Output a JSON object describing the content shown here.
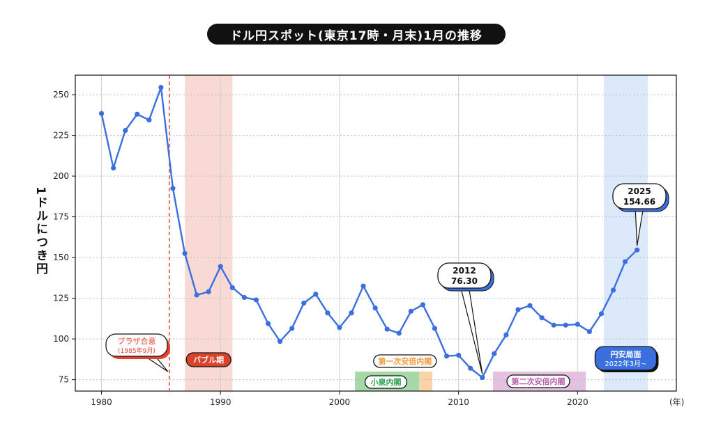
{
  "chart_data": {
    "type": "line",
    "title": "ドル円スポット(東京17時・月末)1月の推移",
    "ylabel": "1ドルにつき円",
    "xunit": "(年)",
    "xlim": [
      1977.8,
      1978.0
    ],
    "ylim": [
      68,
      262
    ],
    "xticks": [
      1980,
      1990,
      2000,
      2010,
      2020
    ],
    "yticks": [
      75,
      100,
      125,
      150,
      175,
      200,
      225,
      250
    ],
    "x": [
      1980,
      1981,
      1982,
      1983,
      1984,
      1985,
      1986,
      1987,
      1988,
      1989,
      1990,
      1991,
      1992,
      1993,
      1994,
      1995,
      1996,
      1997,
      1998,
      1999,
      2000,
      2001,
      2002,
      2003,
      2004,
      2005,
      2006,
      2007,
      2008,
      2009,
      2010,
      2011,
      2012,
      2013,
      2014,
      2015,
      2016,
      2017,
      2018,
      2019,
      2020,
      2021,
      2022,
      2023,
      2024,
      2025
    ],
    "series": [
      {
        "values": [
          238.5,
          205.0,
          228.0,
          238.0,
          234.5,
          254.5,
          192.5,
          152.5,
          127.0,
          129.0,
          144.5,
          131.5,
          125.5,
          124.0,
          109.5,
          98.5,
          106.5,
          122.0,
          127.5,
          116.0,
          107.0,
          116.0,
          132.5,
          119.0,
          106.0,
          103.5,
          117.0,
          121.0,
          106.5,
          89.5,
          90.0,
          82.0,
          76.3,
          91.0,
          102.5,
          118.0,
          120.5,
          113.0,
          108.5,
          108.5,
          109.0,
          104.5,
          115.5,
          130.0,
          147.5,
          154.66
        ],
        "color": "#3b6fe0"
      }
    ],
    "annotations": [
      {
        "title": "2012",
        "value": "76.30"
      },
      {
        "title": "2025",
        "value": "154.66"
      }
    ],
    "events": {
      "plaza": {
        "label": "プラザ合意",
        "sub": "(1985年9月)",
        "year": 1985.7,
        "color": "#e8402a"
      },
      "bubble": {
        "label": "バブル期",
        "start": 1987.0,
        "end": 1991.0,
        "color": "#f6c9c1",
        "label_color": "#d9432b"
      },
      "koizumi": {
        "label": "小泉内閣",
        "start": 2001.3,
        "end": 2006.7,
        "color": "#a6d9a8",
        "label_color": "#27a24a"
      },
      "abe1": {
        "label": "第一次安倍内閣",
        "start": 2006.7,
        "end": 2007.8,
        "color": "#fbd3a8",
        "label_color": "#f29a3a"
      },
      "abe2": {
        "label": "第二次安倍内閣",
        "start": 2012.9,
        "end": 2020.7,
        "color": "#e4c1e1",
        "label_color": "#b65ea8"
      },
      "weakyen": {
        "label": "円安局面",
        "sub": "2022年3月~",
        "start": 2022.2,
        "end": 2025.9,
        "color": "#dbe9fa",
        "label_color": "#3b6fe0"
      }
    },
    "grid": true
  }
}
